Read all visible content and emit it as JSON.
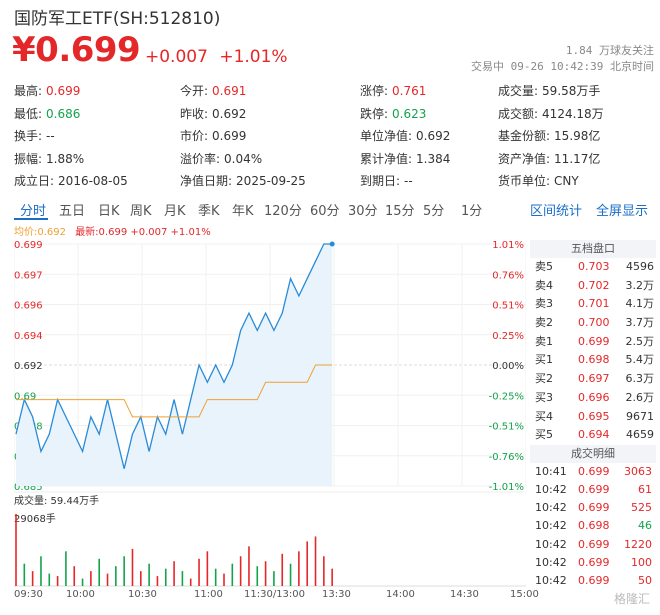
{
  "header": {
    "title": "国防军工ETF(SH:512810)",
    "price": "¥0.699",
    "change": "+0.007",
    "change_pct": "+1.01%",
    "followers": "1.84 万球友关注",
    "trade_status": "交易中 09-26 10:42:39 北京时间"
  },
  "stats": [
    [
      {
        "label": "最高:",
        "value": "0.699",
        "color": "red"
      },
      {
        "label": "今开:",
        "value": "0.691",
        "color": "red"
      },
      {
        "label": "涨停:",
        "value": "0.761",
        "color": "red"
      },
      {
        "label": "成交量:",
        "value": "59.58万手",
        "color": ""
      }
    ],
    [
      {
        "label": "最低:",
        "value": "0.686",
        "color": "green"
      },
      {
        "label": "昨收:",
        "value": "0.692",
        "color": ""
      },
      {
        "label": "跌停:",
        "value": "0.623",
        "color": "green"
      },
      {
        "label": "成交额:",
        "value": "4124.18万",
        "color": ""
      }
    ],
    [
      {
        "label": "换手:",
        "value": "--",
        "color": ""
      },
      {
        "label": "市价:",
        "value": "0.699",
        "color": ""
      },
      {
        "label": "单位净值:",
        "value": "0.692",
        "color": ""
      },
      {
        "label": "基金份额:",
        "value": "15.98亿",
        "color": ""
      }
    ],
    [
      {
        "label": "振幅:",
        "value": "1.88%",
        "color": ""
      },
      {
        "label": "溢价率:",
        "value": "0.04%",
        "color": ""
      },
      {
        "label": "累计净值:",
        "value": "1.384",
        "color": ""
      },
      {
        "label": "资产净值:",
        "value": "11.17亿",
        "color": ""
      }
    ],
    [
      {
        "label": "成立日:",
        "value": "2016-08-05",
        "color": ""
      },
      {
        "label": "净值日期:",
        "value": "2025-09-25",
        "color": ""
      },
      {
        "label": "到期日:",
        "value": "--",
        "color": ""
      },
      {
        "label": "货币单位:",
        "value": "CNY",
        "color": ""
      }
    ]
  ],
  "tabs": [
    "分时",
    "五日",
    "日K",
    "周K",
    "月K",
    "季K",
    "年K",
    "120分",
    "60分",
    "30分",
    "15分",
    "5分",
    "1分"
  ],
  "tabs_right": [
    "区间统计",
    "全屏显示"
  ],
  "legend": {
    "avg": "均价:0.692",
    "latest": "最新:0.699 +0.007 +1.01%"
  },
  "volume_label": "成交量: 59.44万手",
  "volume_max_label": "29068手",
  "orderbook": {
    "title": "五档盘口",
    "rows": [
      {
        "side": "卖5",
        "price": "0.703",
        "vol": "4596"
      },
      {
        "side": "卖4",
        "price": "0.702",
        "vol": "3.2万"
      },
      {
        "side": "卖3",
        "price": "0.701",
        "vol": "4.1万"
      },
      {
        "side": "卖2",
        "price": "0.700",
        "vol": "3.7万"
      },
      {
        "side": "卖1",
        "price": "0.699",
        "vol": "2.5万"
      },
      {
        "side": "买1",
        "price": "0.698",
        "vol": "5.4万"
      },
      {
        "side": "买2",
        "price": "0.697",
        "vol": "6.3万"
      },
      {
        "side": "买3",
        "price": "0.696",
        "vol": "2.6万"
      },
      {
        "side": "买4",
        "price": "0.695",
        "vol": "9671"
      },
      {
        "side": "买5",
        "price": "0.694",
        "vol": "4659"
      }
    ]
  },
  "trades": {
    "title": "成交明细",
    "rows": [
      {
        "time": "10:41",
        "price": "0.699",
        "vol": "3063",
        "color": "red"
      },
      {
        "time": "10:42",
        "price": "0.699",
        "vol": "61",
        "color": "red"
      },
      {
        "time": "10:42",
        "price": "0.699",
        "vol": "525",
        "color": "red"
      },
      {
        "time": "10:42",
        "price": "0.698",
        "vol": "46",
        "color": "green"
      },
      {
        "time": "10:42",
        "price": "0.699",
        "vol": "1220",
        "color": "red"
      },
      {
        "time": "10:42",
        "price": "0.699",
        "vol": "100",
        "color": "red"
      },
      {
        "time": "10:42",
        "price": "0.699",
        "vol": "50",
        "color": "red"
      }
    ]
  },
  "xaxis": [
    "09:30",
    "10:00",
    "10:30",
    "11:00",
    "11:30/13:00",
    "13:30",
    "14:00",
    "14:30",
    "15:00"
  ],
  "watermark": "格隆汇",
  "colors": {
    "up": "#e4282a",
    "down": "#13a34a",
    "price_line": "#2a8bd8",
    "avg_line": "#f0a030",
    "accent": "#1a6ec8"
  },
  "chart_data": {
    "type": "line",
    "y_price_ticks": [
      0.699,
      0.697,
      0.696,
      0.694,
      0.692,
      0.69,
      0.688,
      0.687,
      0.685
    ],
    "y_pct_ticks": [
      "1.01%",
      "0.76%",
      "0.51%",
      "0.25%",
      "0.00%",
      "-0.25%",
      "-0.51%",
      "-0.76%",
      "-1.01%"
    ],
    "ylim": [
      0.685,
      0.699
    ],
    "prev_close": 0.692,
    "price": [
      0.688,
      0.69,
      0.689,
      0.687,
      0.688,
      0.69,
      0.689,
      0.688,
      0.687,
      0.689,
      0.688,
      0.69,
      0.688,
      0.686,
      0.688,
      0.689,
      0.687,
      0.689,
      0.688,
      0.69,
      0.688,
      0.69,
      0.692,
      0.691,
      0.692,
      0.691,
      0.692,
      0.694,
      0.695,
      0.694,
      0.695,
      0.694,
      0.695,
      0.697,
      0.696,
      0.697,
      0.698,
      0.699,
      0.699
    ],
    "avg": [
      0.69,
      0.69,
      0.69,
      0.69,
      0.69,
      0.69,
      0.69,
      0.69,
      0.69,
      0.69,
      0.69,
      0.69,
      0.69,
      0.69,
      0.689,
      0.689,
      0.689,
      0.689,
      0.689,
      0.689,
      0.689,
      0.689,
      0.689,
      0.69,
      0.69,
      0.69,
      0.69,
      0.69,
      0.69,
      0.69,
      0.691,
      0.691,
      0.691,
      0.691,
      0.691,
      0.691,
      0.692,
      0.692,
      0.692
    ],
    "volume": [
      29068,
      9000,
      6000,
      12000,
      5000,
      4000,
      14000,
      8000,
      3000,
      6000,
      11000,
      5000,
      8000,
      12000,
      15000,
      6000,
      9000,
      4000,
      7000,
      10000,
      6000,
      3000,
      11000,
      14000,
      7000,
      5000,
      9000,
      12000,
      16000,
      8000,
      10000,
      6000,
      13000,
      9000,
      14000,
      18000,
      20000,
      12000,
      7000
    ],
    "volume_color": [
      "red",
      "green",
      "red",
      "green",
      "green",
      "red",
      "green",
      "red",
      "green",
      "red",
      "green",
      "red",
      "green",
      "green",
      "red",
      "red",
      "green",
      "red",
      "green",
      "red",
      "green",
      "red",
      "red",
      "red",
      "green",
      "red",
      "green",
      "red",
      "red",
      "green",
      "red",
      "green",
      "red",
      "green",
      "red",
      "red",
      "red",
      "red",
      "red"
    ]
  }
}
